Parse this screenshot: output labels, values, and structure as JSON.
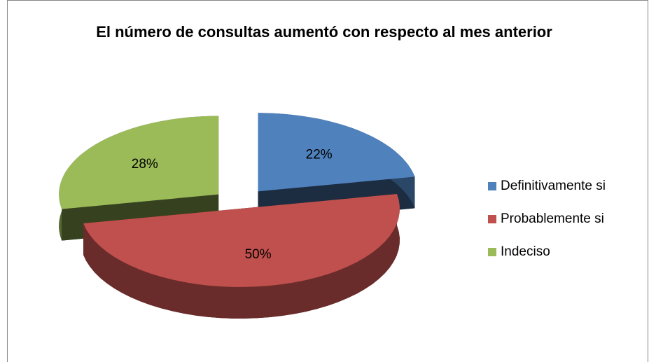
{
  "chart_data": {
    "type": "pie",
    "title": "El número de consultas aumentó con respecto al mes anterior",
    "categories": [
      "Definitivamente si",
      "Probablemente si",
      "Indeciso"
    ],
    "values": [
      22,
      50,
      28
    ],
    "value_labels": [
      "22%",
      "50%",
      "28%"
    ],
    "colors": [
      "#4f81bd",
      "#c0504d",
      "#9bbb59"
    ],
    "legend": "right"
  }
}
